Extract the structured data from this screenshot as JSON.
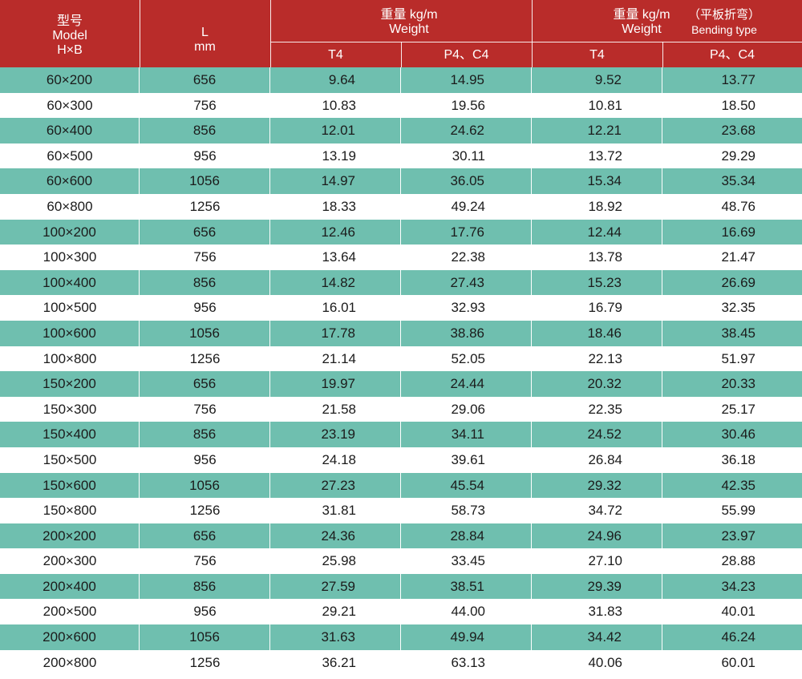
{
  "header": {
    "model_cn": "型号",
    "model_en": "Model",
    "model_dim": "H×B",
    "length_l": "L",
    "length_unit": "mm",
    "weight_group1_cn": "重量 kg/m",
    "weight_group1_en": "Weight",
    "weight_group2_cn": "重量 kg/m",
    "weight_group2_en": "Weight",
    "bending_cn": "（平板折弯）",
    "bending_en": "Bending type",
    "sub_t4_a": "T4",
    "sub_p4c4_a": "P4、C4",
    "sub_t4_b": "T4",
    "sub_p4c4_b": "P4、C4"
  },
  "colors": {
    "header_bg": "#b92c2a",
    "stripe_bg": "#6fbfaf",
    "text": "#1b1b1b"
  },
  "rows": [
    [
      "60×200",
      "656",
      "9.64",
      "14.95",
      "9.52",
      "13.77"
    ],
    [
      "60×300",
      "756",
      "10.83",
      "19.56",
      "10.81",
      "18.50"
    ],
    [
      "60×400",
      "856",
      "12.01",
      "24.62",
      "12.21",
      "23.68"
    ],
    [
      "60×500",
      "956",
      "13.19",
      "30.11",
      "13.72",
      "29.29"
    ],
    [
      "60×600",
      "1056",
      "14.97",
      "36.05",
      "15.34",
      "35.34"
    ],
    [
      "60×800",
      "1256",
      "18.33",
      "49.24",
      "18.92",
      "48.76"
    ],
    [
      "100×200",
      "656",
      "12.46",
      "17.76",
      "12.44",
      "16.69"
    ],
    [
      "100×300",
      "756",
      "13.64",
      "22.38",
      "13.78",
      "21.47"
    ],
    [
      "100×400",
      "856",
      "14.82",
      "27.43",
      "15.23",
      "26.69"
    ],
    [
      "100×500",
      "956",
      "16.01",
      "32.93",
      "16.79",
      "32.35"
    ],
    [
      "100×600",
      "1056",
      "17.78",
      "38.86",
      "18.46",
      "38.45"
    ],
    [
      "100×800",
      "1256",
      "21.14",
      "52.05",
      "22.13",
      "51.97"
    ],
    [
      "150×200",
      "656",
      "19.97",
      "24.44",
      "20.32",
      "20.33"
    ],
    [
      "150×300",
      "756",
      "21.58",
      "29.06",
      "22.35",
      "25.17"
    ],
    [
      "150×400",
      "856",
      "23.19",
      "34.11",
      "24.52",
      "30.46"
    ],
    [
      "150×500",
      "956",
      "24.18",
      "39.61",
      "26.84",
      "36.18"
    ],
    [
      "150×600",
      "1056",
      "27.23",
      "45.54",
      "29.32",
      "42.35"
    ],
    [
      "150×800",
      "1256",
      "31.81",
      "58.73",
      "34.72",
      "55.99"
    ],
    [
      "200×200",
      "656",
      "24.36",
      "28.84",
      "24.96",
      "23.97"
    ],
    [
      "200×300",
      "756",
      "25.98",
      "33.45",
      "27.10",
      "28.88"
    ],
    [
      "200×400",
      "856",
      "27.59",
      "38.51",
      "29.39",
      "34.23"
    ],
    [
      "200×500",
      "956",
      "29.21",
      "44.00",
      "31.83",
      "40.01"
    ],
    [
      "200×600",
      "1056",
      "31.63",
      "49.94",
      "34.42",
      "46.24"
    ],
    [
      "200×800",
      "1256",
      "36.21",
      "63.13",
      "40.06",
      "60.01"
    ]
  ]
}
